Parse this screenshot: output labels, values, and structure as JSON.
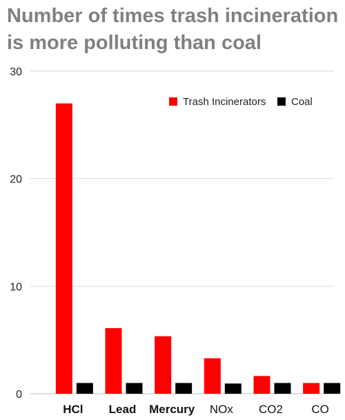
{
  "chart_data": {
    "type": "bar",
    "title_lines": [
      "Number of times trash incineration",
      "is more polluting than coal"
    ],
    "categories": [
      "HCl",
      "Lead",
      "Mercury",
      "NOx",
      "CO2",
      "CO"
    ],
    "categories_bold": [
      true,
      true,
      true,
      false,
      false,
      false
    ],
    "series": [
      {
        "name": "Trash Incinerators",
        "color": "#ff0000",
        "values": [
          27,
          6.1,
          5.35,
          3.3,
          1.65,
          1
        ]
      },
      {
        "name": "Coal",
        "color": "#000000",
        "values": [
          1,
          1,
          1,
          0.95,
          1,
          1
        ]
      }
    ],
    "ylim": [
      0,
      30
    ],
    "yticks": [
      0,
      10,
      20,
      30
    ],
    "grid": true,
    "legend_position": "top-right"
  }
}
